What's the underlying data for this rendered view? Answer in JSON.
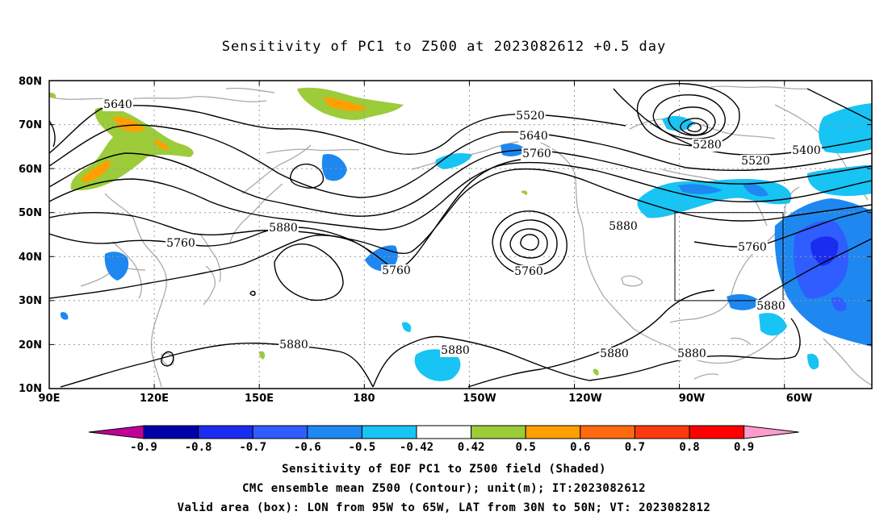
{
  "title": "Sensitivity of PC1 to Z500 at 2023082612 +0.5 day",
  "map": {
    "lat_labels": [
      "80N",
      "70N",
      "60N",
      "50N",
      "40N",
      "30N",
      "20N",
      "10N"
    ],
    "lon_labels": [
      "90E",
      "120E",
      "150E",
      "180",
      "150W",
      "120W",
      "90W",
      "60W"
    ],
    "extent": {
      "lon_min": 90,
      "lon_max": 325,
      "lat_min": 10,
      "lat_max": 80
    },
    "valid_box": {
      "lon_from": "95W",
      "lon_to": "65W",
      "lat_from": "30N",
      "lat_to": "50N"
    },
    "contour_labels": [
      "5640",
      "5520",
      "5640",
      "5760",
      "5280",
      "5400",
      "5520",
      "5760",
      "5880",
      "5760",
      "5760",
      "5880",
      "5760",
      "5880",
      "5880",
      "5880",
      "5880",
      "5880"
    ]
  },
  "colorbar": {
    "labels": [
      "-0.9",
      "-0.8",
      "-0.7",
      "-0.6",
      "-0.5",
      "-0.42",
      "0.42",
      "0.5",
      "0.6",
      "0.7",
      "0.8",
      "0.9"
    ],
    "colors": [
      "#c0009a",
      "#0000a8",
      "#1a2cf0",
      "#2f5dff",
      "#1e88f0",
      "#17c4f4",
      "#ffffff",
      "#9ccc3a",
      "#ffa000",
      "#ff6a10",
      "#ff3a10",
      "#ff0000",
      "#ff9ccc"
    ]
  },
  "captions": {
    "line1": "Sensitivity of EOF PC1 to Z500 field (Shaded)",
    "line2": "CMC ensemble mean Z500 (Contour); unit(m); IT:2023082612",
    "line3": "Valid area (box): LON from 95W to 65W, LAT from 30N to 50N; VT: 2023082812"
  }
}
